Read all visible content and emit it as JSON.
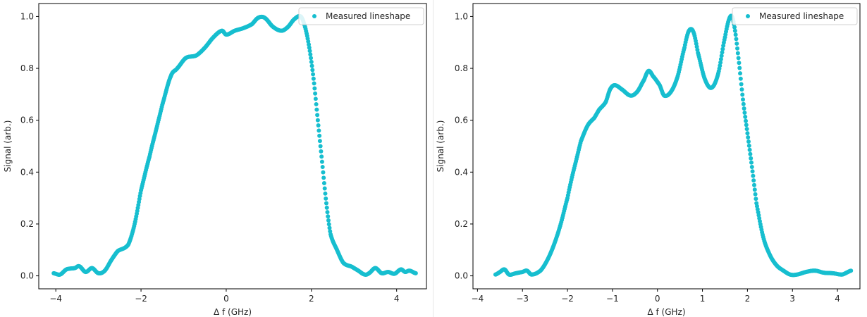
{
  "chart_data": [
    {
      "type": "scatter",
      "xlabel": "Δ f (GHz)",
      "ylabel": "Signal (arb.)",
      "xlim": [
        -4.4,
        4.7
      ],
      "ylim": [
        -0.05,
        1.05
      ],
      "xticks": [
        -4,
        -2,
        0,
        2,
        4
      ],
      "xtick_labels": [
        "−4",
        "−2",
        "0",
        "2",
        "4"
      ],
      "yticks": [
        0.0,
        0.2,
        0.4,
        0.6,
        0.8,
        1.0
      ],
      "ytick_labels": [
        "0.0",
        "0.2",
        "0.4",
        "0.6",
        "0.8",
        "1.0"
      ],
      "legend_position": "top-right",
      "marker_color": "#17becf",
      "series": [
        {
          "name": "Measured lineshape",
          "x_range": [
            -4.05,
            4.45
          ],
          "points": [
            [
              -4.05,
              0.01
            ],
            [
              -3.9,
              0.005
            ],
            [
              -3.75,
              0.025
            ],
            [
              -3.55,
              0.03
            ],
            [
              -3.45,
              0.037
            ],
            [
              -3.3,
              0.015
            ],
            [
              -3.15,
              0.03
            ],
            [
              -3.0,
              0.01
            ],
            [
              -2.85,
              0.02
            ],
            [
              -2.7,
              0.06
            ],
            [
              -2.55,
              0.095
            ],
            [
              -2.3,
              0.12
            ],
            [
              -2.15,
              0.2
            ],
            [
              -2.0,
              0.33
            ],
            [
              -1.8,
              0.46
            ],
            [
              -1.65,
              0.56
            ],
            [
              -1.5,
              0.66
            ],
            [
              -1.3,
              0.77
            ],
            [
              -1.15,
              0.8
            ],
            [
              -0.95,
              0.84
            ],
            [
              -0.7,
              0.85
            ],
            [
              -0.5,
              0.88
            ],
            [
              -0.3,
              0.92
            ],
            [
              -0.1,
              0.945
            ],
            [
              0.0,
              0.93
            ],
            [
              0.2,
              0.945
            ],
            [
              0.4,
              0.955
            ],
            [
              0.6,
              0.97
            ],
            [
              0.75,
              0.995
            ],
            [
              0.9,
              0.995
            ],
            [
              1.1,
              0.96
            ],
            [
              1.3,
              0.945
            ],
            [
              1.45,
              0.96
            ],
            [
              1.6,
              0.99
            ],
            [
              1.75,
              1.0
            ],
            [
              1.85,
              0.96
            ],
            [
              1.95,
              0.88
            ],
            [
              2.05,
              0.76
            ],
            [
              2.15,
              0.6
            ],
            [
              2.25,
              0.44
            ],
            [
              2.35,
              0.28
            ],
            [
              2.45,
              0.16
            ],
            [
              2.6,
              0.1
            ],
            [
              2.75,
              0.05
            ],
            [
              2.95,
              0.035
            ],
            [
              3.1,
              0.02
            ],
            [
              3.25,
              0.005
            ],
            [
              3.35,
              0.01
            ],
            [
              3.5,
              0.03
            ],
            [
              3.65,
              0.01
            ],
            [
              3.8,
              0.015
            ],
            [
              3.95,
              0.008
            ],
            [
              4.1,
              0.025
            ],
            [
              4.2,
              0.015
            ],
            [
              4.3,
              0.02
            ],
            [
              4.45,
              0.01
            ]
          ]
        }
      ]
    },
    {
      "type": "scatter",
      "xlabel": "Δ f (GHz)",
      "ylabel": "Signal (arb.)",
      "xlim": [
        -4.1,
        4.5
      ],
      "ylim": [
        -0.05,
        1.05
      ],
      "xticks": [
        -4,
        -3,
        -2,
        -1,
        0,
        1,
        2,
        3,
        4
      ],
      "xtick_labels": [
        "−4",
        "−3",
        "−2",
        "−1",
        "0",
        "1",
        "2",
        "3",
        "4"
      ],
      "yticks": [
        0.0,
        0.2,
        0.4,
        0.6,
        0.8,
        1.0
      ],
      "ytick_labels": [
        "0.0",
        "0.2",
        "0.4",
        "0.6",
        "0.8",
        "1.0"
      ],
      "legend_position": "top-right",
      "marker_color": "#17becf",
      "series": [
        {
          "name": "Measured lineshape",
          "x_range": [
            -3.6,
            4.3
          ],
          "points": [
            [
              -3.6,
              0.005
            ],
            [
              -3.5,
              0.015
            ],
            [
              -3.4,
              0.025
            ],
            [
              -3.3,
              0.005
            ],
            [
              -3.15,
              0.01
            ],
            [
              -3.0,
              0.015
            ],
            [
              -2.9,
              0.02
            ],
            [
              -2.8,
              0.005
            ],
            [
              -2.6,
              0.02
            ],
            [
              -2.45,
              0.06
            ],
            [
              -2.3,
              0.12
            ],
            [
              -2.15,
              0.2
            ],
            [
              -2.0,
              0.3
            ],
            [
              -1.9,
              0.38
            ],
            [
              -1.8,
              0.45
            ],
            [
              -1.7,
              0.52
            ],
            [
              -1.55,
              0.58
            ],
            [
              -1.4,
              0.61
            ],
            [
              -1.3,
              0.64
            ],
            [
              -1.15,
              0.67
            ],
            [
              -1.05,
              0.72
            ],
            [
              -0.95,
              0.735
            ],
            [
              -0.8,
              0.72
            ],
            [
              -0.6,
              0.695
            ],
            [
              -0.45,
              0.71
            ],
            [
              -0.3,
              0.755
            ],
            [
              -0.2,
              0.79
            ],
            [
              -0.1,
              0.77
            ],
            [
              0.05,
              0.735
            ],
            [
              0.15,
              0.695
            ],
            [
              0.3,
              0.71
            ],
            [
              0.45,
              0.77
            ],
            [
              0.6,
              0.88
            ],
            [
              0.7,
              0.945
            ],
            [
              0.8,
              0.94
            ],
            [
              0.9,
              0.86
            ],
            [
              1.05,
              0.76
            ],
            [
              1.2,
              0.725
            ],
            [
              1.35,
              0.78
            ],
            [
              1.5,
              0.92
            ],
            [
              1.62,
              1.0
            ],
            [
              1.7,
              0.97
            ],
            [
              1.8,
              0.84
            ],
            [
              1.9,
              0.68
            ],
            [
              2.0,
              0.55
            ],
            [
              2.1,
              0.42
            ],
            [
              2.2,
              0.28
            ],
            [
              2.35,
              0.15
            ],
            [
              2.5,
              0.08
            ],
            [
              2.65,
              0.04
            ],
            [
              2.8,
              0.02
            ],
            [
              2.95,
              0.005
            ],
            [
              3.1,
              0.005
            ],
            [
              3.3,
              0.015
            ],
            [
              3.5,
              0.02
            ],
            [
              3.7,
              0.012
            ],
            [
              3.9,
              0.01
            ],
            [
              4.1,
              0.005
            ],
            [
              4.2,
              0.012
            ],
            [
              4.3,
              0.02
            ]
          ]
        }
      ]
    }
  ]
}
